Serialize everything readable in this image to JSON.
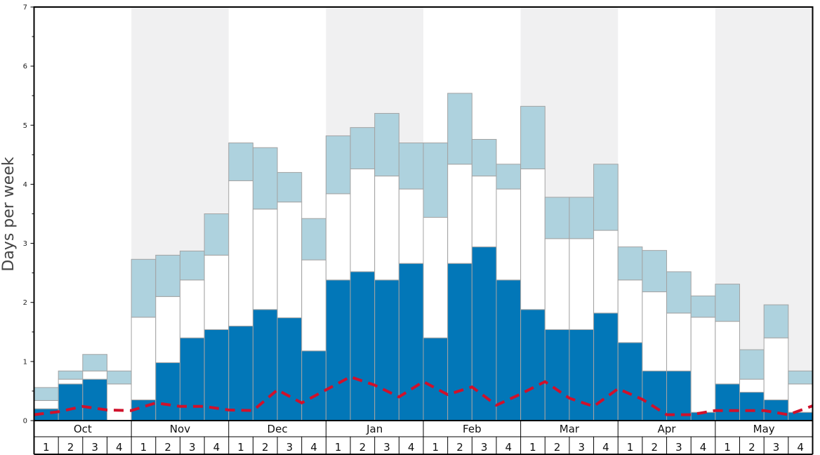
{
  "chart_data": {
    "type": "bar",
    "stacked": true,
    "ylabel": "Days per week",
    "ylim": [
      0,
      7
    ],
    "yticks": [
      0,
      1,
      2,
      3,
      4,
      5,
      6,
      7
    ],
    "months": [
      "Oct",
      "Nov",
      "Dec",
      "Jan",
      "Feb",
      "Mar",
      "Apr",
      "May"
    ],
    "weeks": [
      "1",
      "2",
      "3",
      "4"
    ],
    "month_shading": [
      false,
      true,
      false,
      true,
      false,
      true,
      false,
      true
    ],
    "series": [
      {
        "key": "dark",
        "color": "#0277b8",
        "values": [
          0.2,
          0.62,
          0.7,
          0.0,
          0.35,
          0.98,
          1.4,
          1.54,
          1.6,
          1.88,
          1.74,
          1.18,
          2.38,
          2.52,
          2.38,
          2.66,
          1.4,
          2.66,
          2.94,
          2.38,
          1.88,
          1.54,
          1.54,
          1.82,
          1.32,
          0.84,
          0.84,
          0.14,
          0.62,
          0.48,
          0.35,
          0.14
        ]
      },
      {
        "key": "white",
        "color": "#ffffff",
        "values": [
          0.14,
          0.08,
          0.14,
          0.62,
          1.4,
          1.12,
          0.98,
          1.26,
          2.46,
          1.7,
          1.96,
          1.54,
          1.46,
          1.74,
          1.76,
          1.26,
          2.04,
          1.68,
          1.2,
          1.54,
          2.38,
          1.54,
          1.54,
          1.4,
          1.06,
          1.34,
          0.98,
          1.61,
          1.06,
          0.22,
          1.05,
          0.48
        ]
      },
      {
        "key": "light",
        "color": "#aed2de",
        "values": [
          0.22,
          0.14,
          0.28,
          0.22,
          0.98,
          0.7,
          0.49,
          0.7,
          0.64,
          1.04,
          0.5,
          0.7,
          0.98,
          0.7,
          1.06,
          0.78,
          1.26,
          1.2,
          0.62,
          0.42,
          1.06,
          0.7,
          0.7,
          1.12,
          0.56,
          0.7,
          0.7,
          0.36,
          0.63,
          0.5,
          0.56,
          0.22
        ]
      }
    ],
    "trend": {
      "color": "#d0112b",
      "values": [
        0.1,
        0.15,
        0.24,
        0.18,
        0.17,
        0.3,
        0.24,
        0.24,
        0.18,
        0.17,
        0.52,
        0.3,
        0.52,
        0.74,
        0.6,
        0.4,
        0.66,
        0.44,
        0.57,
        0.26,
        0.45,
        0.66,
        0.38,
        0.24,
        0.54,
        0.36,
        0.1,
        0.1,
        0.17,
        0.17,
        0.17,
        0.1,
        0.25
      ]
    }
  }
}
